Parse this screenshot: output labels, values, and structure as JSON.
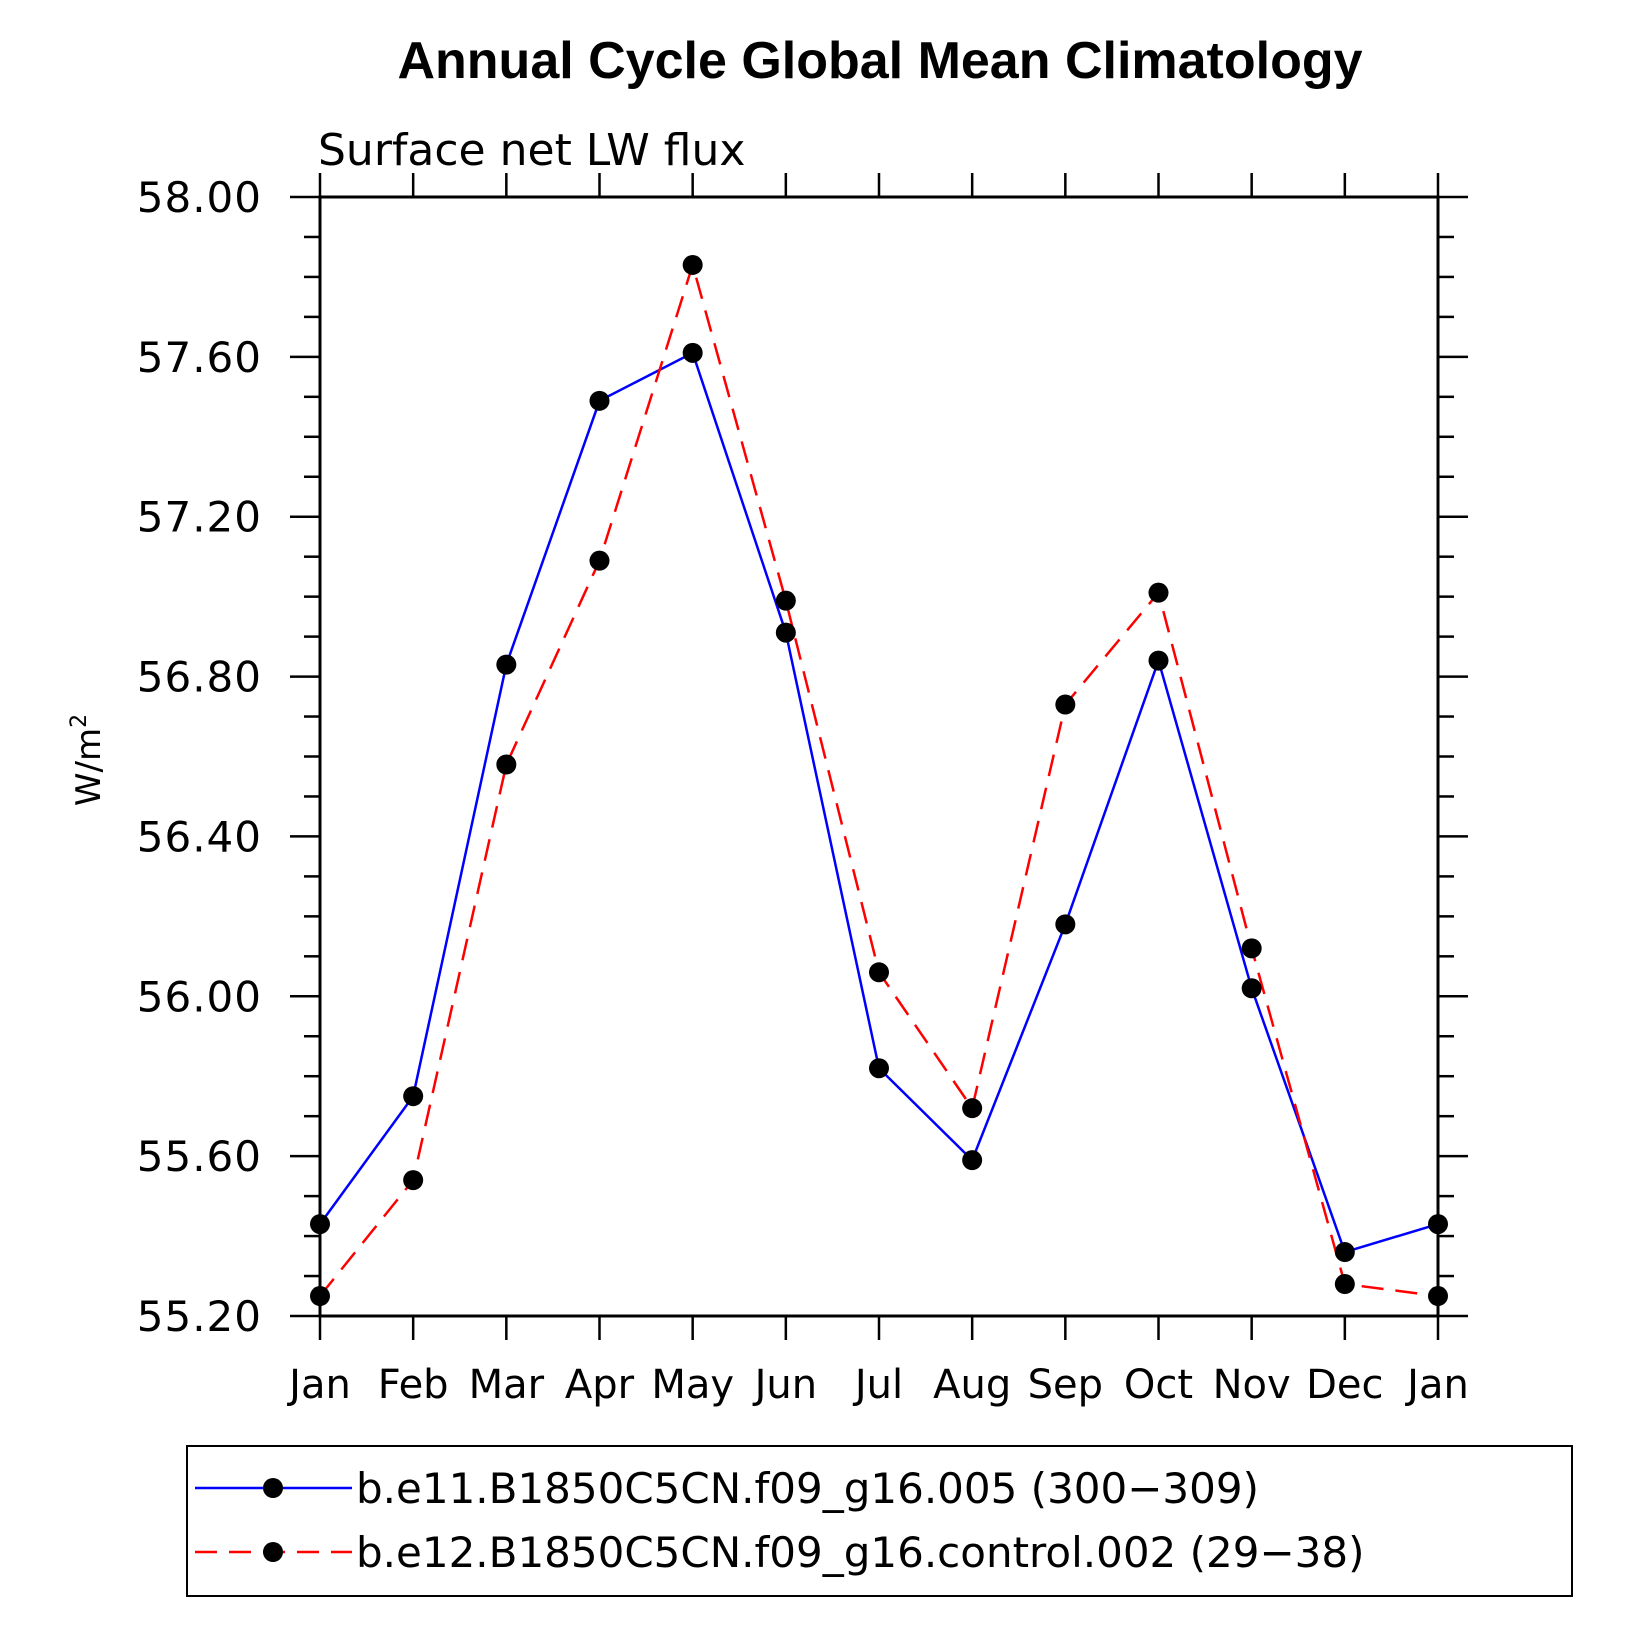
{
  "chart_data": {
    "type": "line",
    "title": "Annual Cycle Global Mean Climatology",
    "subtitle": "Surface net LW flux",
    "ylabel": "W/m",
    "ylabel_superscript": "2",
    "xlabel": "",
    "categories": [
      "Jan",
      "Feb",
      "Mar",
      "Apr",
      "May",
      "Jun",
      "Jul",
      "Aug",
      "Sep",
      "Oct",
      "Nov",
      "Dec",
      "Jan"
    ],
    "ylim": [
      55.2,
      58.0
    ],
    "yticks": [
      55.2,
      55.6,
      56.0,
      56.4,
      56.8,
      57.2,
      57.6,
      58.0
    ],
    "ytick_labels": [
      "55.20",
      "55.60",
      "56.00",
      "56.40",
      "56.80",
      "57.20",
      "57.60",
      "58.00"
    ],
    "y_minor_step": 0.1,
    "legend_position": "bottom",
    "series": [
      {
        "name": "b.e11.B1850C5CN.f09_g16.005 (300−309)",
        "color": "#0000ff",
        "dash": "solid",
        "marker": "filled-circle",
        "values": [
          55.43,
          55.75,
          56.83,
          57.49,
          57.61,
          56.91,
          55.82,
          55.59,
          56.18,
          56.84,
          56.02,
          55.36,
          55.43
        ]
      },
      {
        "name": "b.e12.B1850C5CN.f09_g16.control.002 (29−38)",
        "color": "#ff0000",
        "dash": "dashed",
        "marker": "filled-circle",
        "values": [
          55.25,
          55.54,
          56.58,
          57.09,
          57.83,
          56.99,
          56.06,
          55.72,
          56.73,
          57.01,
          56.12,
          55.28,
          55.25
        ]
      }
    ]
  }
}
